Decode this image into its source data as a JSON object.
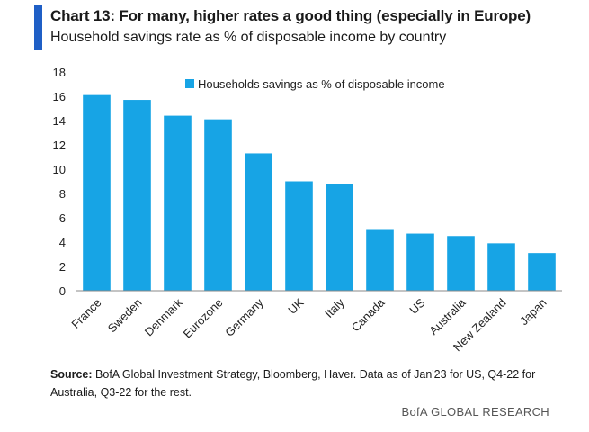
{
  "header": {
    "title": "Chart 13: For many, higher rates a good thing (especially in Europe)",
    "subtitle": "Household savings rate as % of disposable income by country"
  },
  "chart_data": {
    "type": "bar",
    "categories": [
      "France",
      "Sweden",
      "Denmark",
      "Eurozone",
      "Germany",
      "UK",
      "Italy",
      "Canada",
      "US",
      "Australia",
      "New Zealand",
      "Japan"
    ],
    "series": [
      {
        "name": "Households savings as % of disposable income",
        "values": [
          16.1,
          15.7,
          14.4,
          14.1,
          11.3,
          9.0,
          8.8,
          5.0,
          4.7,
          4.5,
          3.9,
          3.1
        ],
        "color": "#17a4e5"
      }
    ],
    "yticks": [
      0,
      2,
      4,
      6,
      8,
      10,
      12,
      14,
      16,
      18
    ],
    "ylim": [
      0,
      18
    ],
    "grid": false,
    "legend": "top-right"
  },
  "footer": {
    "source_label": "Source:",
    "source_text": "BofA Global Investment Strategy, Bloomberg, Haver. Data as of Jan'23 for US, Q4-22  for Australia, Q3-22 for the rest.",
    "brand": "BofA GLOBAL RESEARCH"
  },
  "colors": {
    "accent": "#1f5fc6",
    "bar": "#17a4e5"
  }
}
